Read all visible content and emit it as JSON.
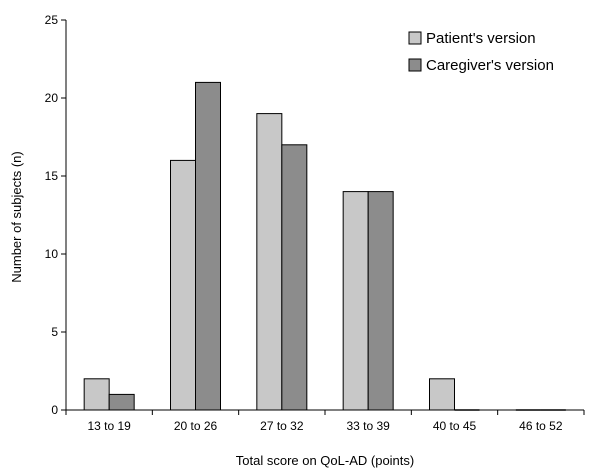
{
  "chart_data": {
    "type": "bar",
    "title": "",
    "xlabel": "Total score on QoL-AD (points)",
    "ylabel": "Number of subjects (n)",
    "ylim": [
      0,
      25
    ],
    "yticks": [
      0,
      5,
      10,
      15,
      20,
      25
    ],
    "categories": [
      "13 to 19",
      "20 to 26",
      "27 to 32",
      "33 to 39",
      "40 to 45",
      "46 to 52"
    ],
    "series": [
      {
        "name": "Patient's version",
        "color": "#c8c8c8",
        "values": [
          2,
          16,
          19,
          14,
          2,
          0
        ]
      },
      {
        "name": "Caregiver's version",
        "color": "#8c8c8c",
        "values": [
          1,
          21,
          17,
          14,
          0,
          0
        ]
      }
    ],
    "legend_position": "top-right",
    "grid": false
  }
}
